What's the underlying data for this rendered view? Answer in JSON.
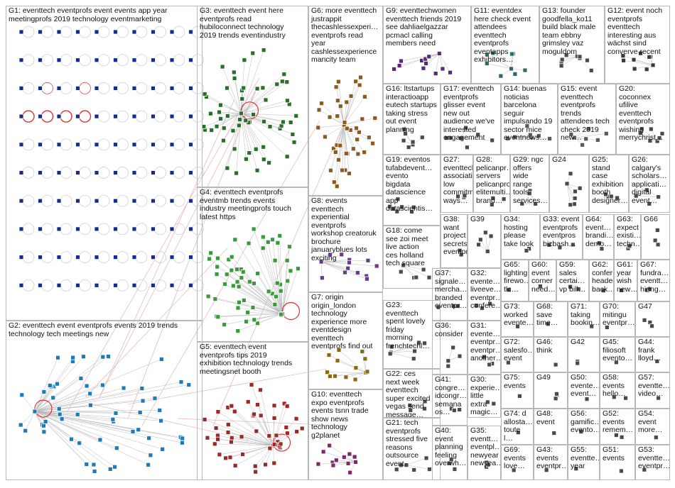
{
  "graph": {
    "title": "",
    "groups": [
      {
        "id": "G1",
        "text": "G1: eventtech eventprofs event events app year\nmeetingprofs 2019 technology eventmarketing",
        "color": "#1a2a88"
      },
      {
        "id": "G2",
        "text": "G2: eventtech event eventprofs events 2019 trends\ntechnology tech meetings new",
        "color": "#1f7ab5"
      },
      {
        "id": "G3",
        "text": "G3: eventtech event here\neventprofs read\nhubiloconnect technology\n2019 trends eventindustry",
        "color": "#2b6e2b"
      },
      {
        "id": "G4",
        "text": "G4: eventtech eventprofs\neventmb trends events\nindustry meetingprofs touch\nlatest https",
        "color": "#3a9a3a"
      },
      {
        "id": "G5",
        "text": "G5: eventtech event\neventprofs tips 2019\nexhibition technology trends\nmeetingsnet booth",
        "color": "#9a2a2a"
      },
      {
        "id": "G6",
        "text": "G6: more eventtech\njustrappit\nthecashlessexperi…\neventprofs read\nyear\ncashlessexperience\nmancity team",
        "color": "#8a5a20"
      },
      {
        "id": "G7",
        "text": "G7: origin\norigin_london\ntechnology\nexperience more\neventdesign\neventtech\neventprofs find out",
        "color": "#8a6a10"
      },
      {
        "id": "G8",
        "text": "G8: events\neventtech\nexperiential\neventprofs\nworkshop creatoruk\nbrochure\njanuaryblues lots\nexciting",
        "color": "#6a3a8a"
      },
      {
        "id": "G9",
        "text": "G9: eventtechwomen\neventtech friends 2019\nsee dahliaelgazzar\npcmacl calling\nmembers need",
        "color": "#5a2a7a"
      },
      {
        "id": "G10",
        "text": "G10: eventtech\nexpo eventprofs\nevents tsnn trade\nshow news\ntechnology\ng2planet",
        "color": "#7a2a6a"
      },
      {
        "id": "G11",
        "text": "G11: eventdex\nhere check event\nattendees\neventtech\neventprofs\neventapps\nexhibitors…",
        "color": "#2a6a6a"
      },
      {
        "id": "G12",
        "text": "G12: event noch\neventprofs\neventtech\ninteresting aus\nwächst sind\nconverve recent",
        "color": "#3a3a3a"
      },
      {
        "id": "G13",
        "text": "G13: founder\ngoodfella_ko11\nbuild black male\nteam ebbny\ngrimsley vaz\nmoguldom",
        "color": "#4a4a4a"
      },
      {
        "id": "G14",
        "text": "G14: buenas\nnoticias\nbarcelona\nseguir\nimpulsando 19\nsector mice\neventnews…",
        "color": "#5a5a5a"
      },
      {
        "id": "G15",
        "text": "G15: event\neventtech\neventprofs\ntrends\nattendees tech\ncheck 2019\nnew…",
        "color": "#5a5a5a"
      },
      {
        "id": "G16",
        "text": "G16: ltstartups\ninteractioapp\neutech startups\ntaking stress\nout event\nplanning",
        "color": "#4a4a4a"
      },
      {
        "id": "G17",
        "text": "G17: eventtech\neventprofs\nglisser event\nnew out\naudience we've\ninterested\nengagement",
        "color": "#4a4a4a"
      },
      {
        "id": "G18",
        "text": "G18: come\nsee zoi meet\nlive action\nces holland\ntech square",
        "color": "#4a4a4a"
      },
      {
        "id": "G19",
        "text": "G19: eventos\ntufabdevent…\nevento\nbigdata\ndatascience\napp\ndatascientis…",
        "color": "#4a4a4a"
      },
      {
        "id": "G20",
        "text": "G20:\ncoconnex\nufilive\neventtech\neventprofs\nwishing\nmerrychrist…",
        "color": "#4a4a4a"
      },
      {
        "id": "G21",
        "text": "G21: tech\neventprofs\nstressed five\nreasons\noutsource\nevent",
        "color": "#4a4a4a"
      },
      {
        "id": "G22",
        "text": "G22: ces\nnext week\neventtech\nsuper excited\nvegas send\nmessage…",
        "color": "#4a4a4a"
      },
      {
        "id": "G23",
        "text": "G23:\neventtech\nspent lovely\nfriday\nmorning\nfrenchtechl…",
        "color": "#4a4a4a"
      },
      {
        "id": "G24",
        "text": "G24",
        "color": "#4a4a4a"
      },
      {
        "id": "G25",
        "text": "G25:\nstand\ncase\nexhibition\nbooth\ndesigner…",
        "color": "#4a4a4a"
      },
      {
        "id": "G26",
        "text": "G26:\ncalgary's\nscholars…\napplicati…\ndigital\nevent…",
        "color": "#4a4a4a"
      },
      {
        "id": "G27",
        "text": "G27:\neventtech\nassociati…\nlow\ncommitm…\nways…",
        "color": "#4a4a4a"
      },
      {
        "id": "G28",
        "text": "G28:\npelicanpr…\nservers\npelicanpro\nelitemulti…\nbrand…",
        "color": "#4a4a4a"
      },
      {
        "id": "G29",
        "text": "G29: ngc\noffers\nwide\nrange\ntools\nservices…",
        "color": "#4a4a4a"
      },
      {
        "id": "G30",
        "text": "G30:\nexperie…\nlittle\nextra\nmagic…",
        "color": "#4a4a4a"
      },
      {
        "id": "G31",
        "text": "G31:\nevente…\neventpr…\neventpr…\nanother…",
        "color": "#4a4a4a"
      },
      {
        "id": "G32",
        "text": "G32:\nevente…\nliveeve…\neventpr…\nconfere…",
        "color": "#4a4a4a"
      },
      {
        "id": "G33",
        "text": "G33: event\neventprofs\neventpros\nbizbash…",
        "color": "#4a4a4a"
      },
      {
        "id": "G34",
        "text": "G34:\nhosting\nplease\ntake look",
        "color": "#4a4a4a"
      },
      {
        "id": "G35",
        "text": "G35:\neventt…\neventpl…\nnewyear\nnewyea…",
        "color": "#4a4a4a"
      },
      {
        "id": "G36",
        "text": "G36:\nconsider",
        "color": "#4a4a4a"
      },
      {
        "id": "G37",
        "text": "G37:\nsignale…\nmercha…\nbranded\neventpr…",
        "color": "#4a4a4a"
      },
      {
        "id": "G38",
        "text": "G38:\nwant\nproject\nsecrets…\neventpr…",
        "color": "#4a4a4a"
      },
      {
        "id": "G39",
        "text": "G39",
        "color": "#4a4a4a"
      },
      {
        "id": "G40",
        "text": "G40:\nevent\nplanning\nfeeling\noverwh…",
        "color": "#4a4a4a"
      },
      {
        "id": "G41",
        "text": "G41:\ncongre…\nidcongr…\nsemana\nos…",
        "color": "#4a4a4a"
      },
      {
        "id": "G42",
        "text": "G42",
        "color": "#4a4a4a"
      },
      {
        "id": "G43",
        "text": "G43:\nevents\neventpr…",
        "color": "#4a4a4a"
      },
      {
        "id": "G44",
        "text": "G44:\nfrank\nlloyd…",
        "color": "#4a4a4a"
      },
      {
        "id": "G45",
        "text": "G45:\nfiliosoft\nevento…",
        "color": "#4a4a4a"
      },
      {
        "id": "G46",
        "text": "G46:\nthink",
        "color": "#4a4a4a"
      },
      {
        "id": "G47",
        "text": "G47",
        "color": "#4a4a4a"
      },
      {
        "id": "G48",
        "text": "G48:\nevent",
        "color": "#4a4a4a"
      },
      {
        "id": "G49",
        "text": "G49",
        "color": "#4a4a4a"
      },
      {
        "id": "G50",
        "text": "G50:\nevente…\nevent…",
        "color": "#4a4a4a"
      },
      {
        "id": "G51",
        "text": "G51:\nevents",
        "color": "#4a4a4a"
      },
      {
        "id": "G52",
        "text": "G52:\nevents\nremem…",
        "color": "#4a4a4a"
      },
      {
        "id": "G53",
        "text": "G53:\neventte…\neventpr…",
        "color": "#4a4a4a"
      },
      {
        "id": "G54",
        "text": "G54:\nevent\nmore…",
        "color": "#4a4a4a"
      },
      {
        "id": "G55",
        "text": "G55:\neventte…\nyear",
        "color": "#4a4a4a"
      },
      {
        "id": "G56",
        "text": "G56:\ngamific…\nevento…",
        "color": "#4a4a4a"
      },
      {
        "id": "G57",
        "text": "G57:\neventte…\nvideo…",
        "color": "#4a4a4a"
      },
      {
        "id": "G58",
        "text": "G58:\nevents\nhello…",
        "color": "#4a4a4a"
      },
      {
        "id": "G59",
        "text": "G59:\nsales\ncertai…\nvp bill…",
        "color": "#4a4a4a"
      },
      {
        "id": "G60",
        "text": "G60:\nevent\ncorner\nneed…",
        "color": "#4a4a4a"
      },
      {
        "id": "G61",
        "text": "G61:\nyear\nwish\nnew…",
        "color": "#4a4a4a"
      },
      {
        "id": "G62",
        "text": "G62:\nconfer…\nheaded\nback…",
        "color": "#4a4a4a"
      },
      {
        "id": "G63",
        "text": "G63:\nexpect\nexisti…\ntechn…",
        "color": "#4a4a4a"
      },
      {
        "id": "G64",
        "text": "G64:\nevent…\nbrandi…\ndemo…",
        "color": "#4a4a4a"
      },
      {
        "id": "G65",
        "text": "G65:\nlighting\nfirewo…\ntlc…",
        "color": "#4a4a4a"
      },
      {
        "id": "G66",
        "text": "G66",
        "color": "#4a4a4a"
      },
      {
        "id": "G67",
        "text": "G67:\nfundra…\neventt…\nhiring…",
        "color": "#4a4a4a"
      },
      {
        "id": "G68",
        "text": "G68:\nsave\ntime…",
        "color": "#4a4a4a"
      },
      {
        "id": "G69",
        "text": "G69:\nevents\nlove…",
        "color": "#4a4a4a"
      },
      {
        "id": "G70",
        "text": "G70:\nmitingu\neventpr…",
        "color": "#4a4a4a"
      },
      {
        "id": "G71",
        "text": "G71:\ntaking\nbookin…",
        "color": "#4a4a4a"
      },
      {
        "id": "G72",
        "text": "G72:\nsalesfo…\nevent",
        "color": "#4a4a4a"
      },
      {
        "id": "G73",
        "text": "G73:\nworked\nevente…",
        "color": "#4a4a4a"
      },
      {
        "id": "G74",
        "text": "G74: d\nallosta…\ntoute l…",
        "color": "#4a4a4a"
      },
      {
        "id": "G75",
        "text": "G75:\nevents",
        "color": "#4a4a4a"
      }
    ]
  }
}
